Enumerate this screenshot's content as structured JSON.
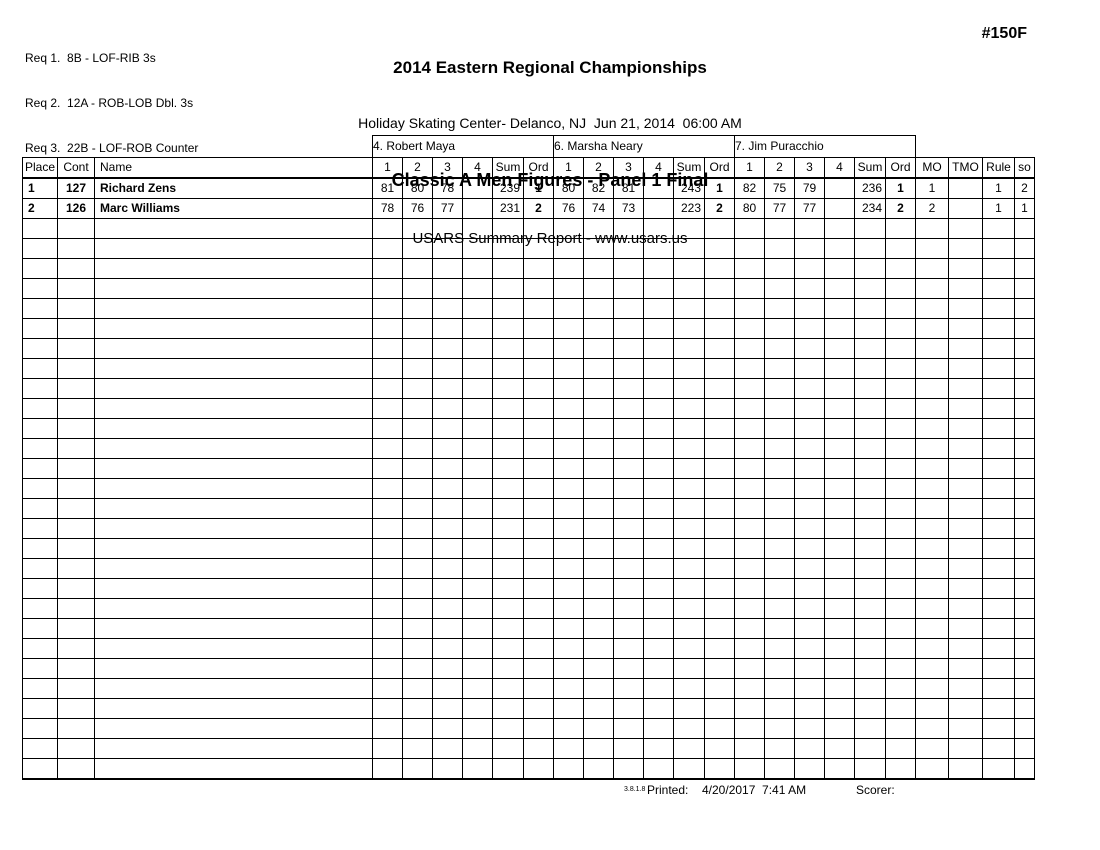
{
  "header": {
    "requirements": [
      "Req 1.  8B - LOF-RIB 3s",
      "Req 2.  12A - ROB-LOB Dbl. 3s",
      "Req 3.  22B - LOF-ROB Counter"
    ],
    "event_title": "2014 Eastern Regional Championships",
    "venue_line": "Holiday Skating Center- Delanco, NJ  Jun 21, 2014  06:00 AM",
    "event_name": "Classic A Men Figures - Panel 1 Final",
    "report_title": "USARS Summary Report - www.usars.us",
    "event_number": "#150F"
  },
  "table": {
    "judges": [
      "4.  Robert Maya",
      "6.  Marsha Neary",
      "7.  Jim Puracchio"
    ],
    "left_headers": [
      "Place",
      "Cont",
      "Name"
    ],
    "judge_sub_headers": [
      "1",
      "2",
      "3",
      "4",
      "Sum",
      "Ord"
    ],
    "right_headers": [
      "MO",
      "TMO",
      "Rule",
      "so"
    ],
    "rows": [
      {
        "place": "1",
        "cont": "127",
        "name": "Richard Zens",
        "judge_scores": [
          {
            "marks": [
              "81",
              "80",
              "78",
              ""
            ],
            "sum": "239",
            "ord": "1"
          },
          {
            "marks": [
              "80",
              "82",
              "81",
              ""
            ],
            "sum": "243",
            "ord": "1"
          },
          {
            "marks": [
              "82",
              "75",
              "79",
              ""
            ],
            "sum": "236",
            "ord": "1"
          }
        ],
        "mo": "1",
        "tmo": "",
        "rule": "1",
        "so": "2"
      },
      {
        "place": "2",
        "cont": "126",
        "name": "Marc Williams",
        "judge_scores": [
          {
            "marks": [
              "78",
              "76",
              "77",
              ""
            ],
            "sum": "231",
            "ord": "2"
          },
          {
            "marks": [
              "76",
              "74",
              "73",
              ""
            ],
            "sum": "223",
            "ord": "2"
          },
          {
            "marks": [
              "80",
              "77",
              "77",
              ""
            ],
            "sum": "234",
            "ord": "2"
          }
        ],
        "mo": "2",
        "tmo": "",
        "rule": "1",
        "so": "1"
      }
    ],
    "empty_row_count": 28
  },
  "footer": {
    "version": "3.8.1.8",
    "printed_label": "Printed:",
    "printed_value": "4/20/2017  7:41 AM",
    "scorer_label": "Scorer:"
  }
}
